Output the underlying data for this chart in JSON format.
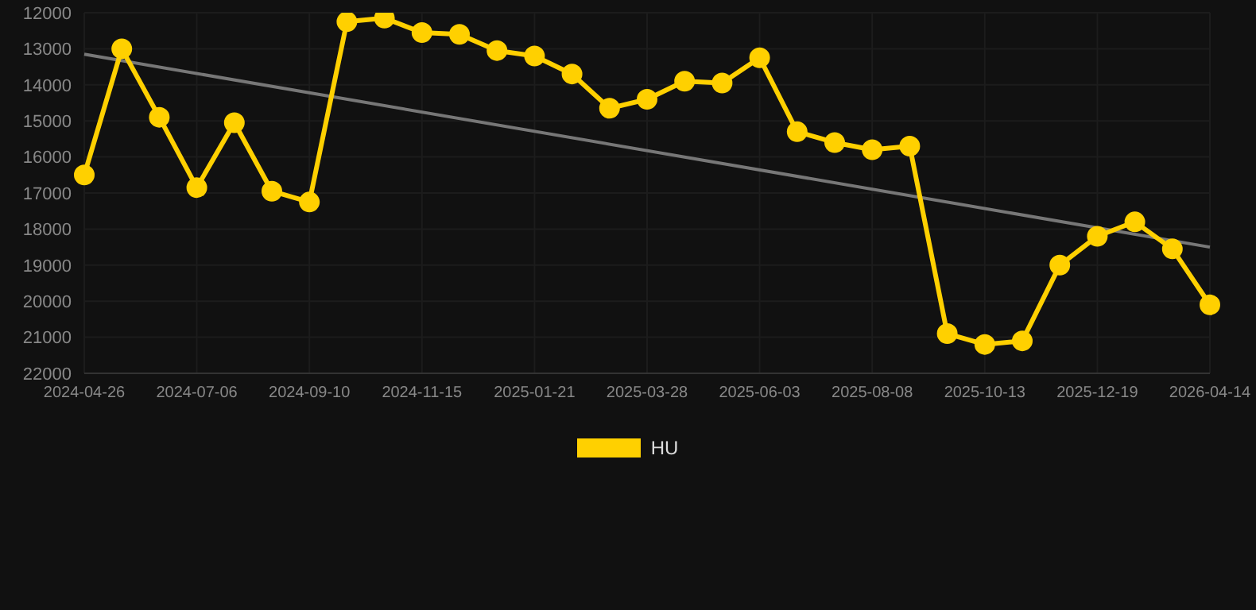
{
  "chart_data": {
    "type": "line",
    "categories": [
      "2024-04-26",
      null,
      null,
      "2024-07-06",
      null,
      null,
      "2024-09-10",
      null,
      null,
      "2024-11-15",
      null,
      null,
      "2025-01-21",
      null,
      null,
      "2025-03-28",
      null,
      null,
      "2025-06-03",
      null,
      null,
      "2025-08-08",
      null,
      null,
      "2025-10-13",
      null,
      null,
      "2025-12-19",
      null,
      null,
      "2026-04-14"
    ],
    "series": [
      {
        "name": "HU",
        "color": "#ffd000",
        "marker": "circle",
        "values": [
          16500,
          13000,
          14900,
          16850,
          15050,
          16950,
          17250,
          12250,
          12150,
          12550,
          12600,
          13050,
          13200,
          13700,
          14650,
          14400,
          13900,
          13950,
          13250,
          15300,
          15600,
          15800,
          15700,
          20900,
          21200,
          21100,
          19000,
          18200,
          17800,
          18550,
          20100
        ]
      },
      {
        "type": "line",
        "color": "#777777",
        "marker": "none",
        "values": [
          13150,
          null,
          null,
          null,
          null,
          null,
          null,
          null,
          null,
          null,
          null,
          null,
          null,
          null,
          null,
          null,
          null,
          null,
          null,
          null,
          null,
          null,
          null,
          null,
          null,
          null,
          null,
          null,
          null,
          null,
          18500
        ]
      }
    ],
    "ylim": [
      22000,
      12000
    ],
    "yticks": [
      12000,
      13000,
      14000,
      15000,
      16000,
      17000,
      18000,
      19000,
      20000,
      21000,
      22000
    ],
    "grid": true,
    "legend": "bottom"
  }
}
